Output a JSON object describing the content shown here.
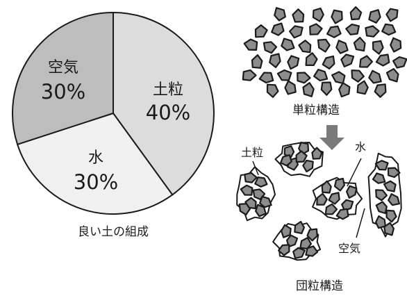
{
  "pie": {
    "caption": "良い土の組成",
    "slices": [
      {
        "label": "土粒",
        "percent_text": "40%",
        "value": 40,
        "color": "#dcdcdc"
      },
      {
        "label": "水",
        "percent_text": "30%",
        "value": 30,
        "color": "#f0f0f0"
      },
      {
        "label": "空気",
        "percent_text": "30%",
        "value": 30,
        "color": "#bdbdbd"
      }
    ]
  },
  "single_grain": {
    "caption": "単粒構造"
  },
  "crumb": {
    "caption": "団粒構造",
    "labels": {
      "soil": "土粒",
      "water": "水",
      "air": "空気"
    }
  },
  "colors": {
    "grain_fill": "#8c8c8c",
    "arrow": "#7a7a7a",
    "outline": "#1a1a1a"
  }
}
